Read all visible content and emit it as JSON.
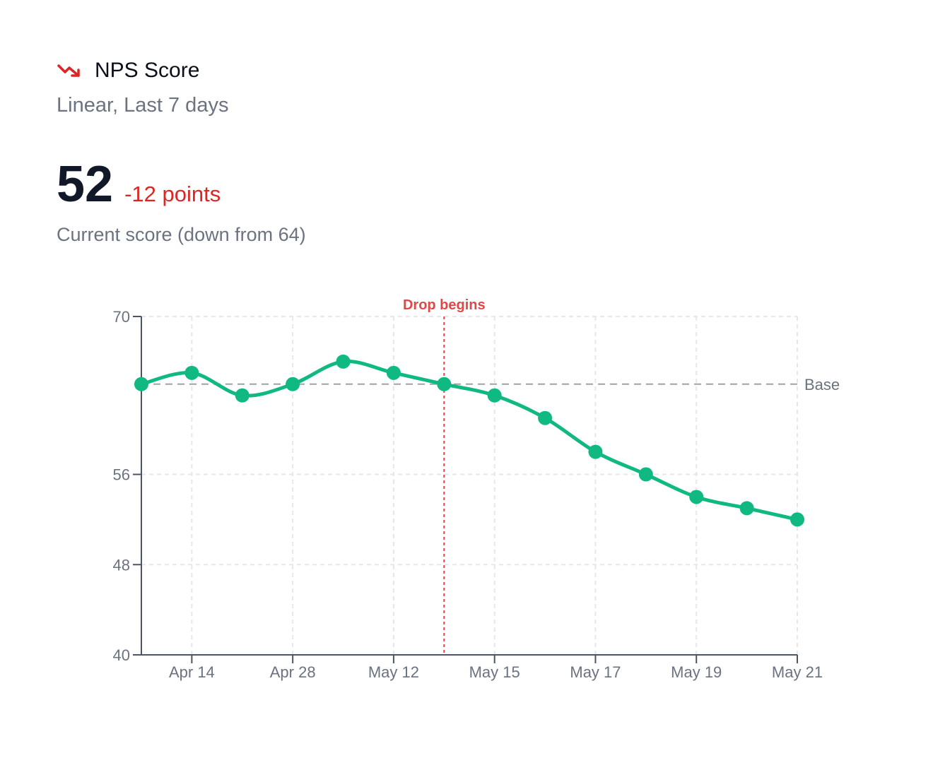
{
  "header": {
    "title": "NPS Score",
    "trend_icon": "trending-down-icon",
    "subtitle": "Linear, Last 7 days"
  },
  "metric": {
    "value": "52",
    "delta": "-12 points",
    "caption": "Current score (down from 64)"
  },
  "colors": {
    "line": "#10b981",
    "negative": "#dc2626",
    "annotation": "#e04848",
    "baseline": "#9ca3af",
    "grid": "#e5e7eb",
    "axis": "#4b5563",
    "tick_text": "#6b7280"
  },
  "chart_data": {
    "type": "line",
    "title": "",
    "xlabel": "",
    "ylabel": "",
    "ylim": [
      40,
      70
    ],
    "y_ticks": [
      "70",
      "56",
      "48",
      "40"
    ],
    "x_tick_labels": [
      "Apr 14",
      "Apr 28",
      "May 12",
      "May 15",
      "May 17",
      "May 19",
      "May 21"
    ],
    "x_tick_positions": [
      1,
      3,
      5,
      7,
      9,
      11,
      13
    ],
    "grid": true,
    "series": [
      {
        "x": [
          0,
          1,
          2,
          3,
          4,
          5,
          6,
          7,
          8,
          9,
          10,
          11,
          12,
          13
        ],
        "values": [
          64,
          65,
          63,
          64,
          66,
          65,
          64,
          63,
          61,
          58,
          56,
          54,
          53,
          52
        ]
      }
    ],
    "baseline": {
      "value": 64,
      "label": "Base"
    },
    "annotation": {
      "x": 6,
      "label": "Drop begins"
    }
  }
}
